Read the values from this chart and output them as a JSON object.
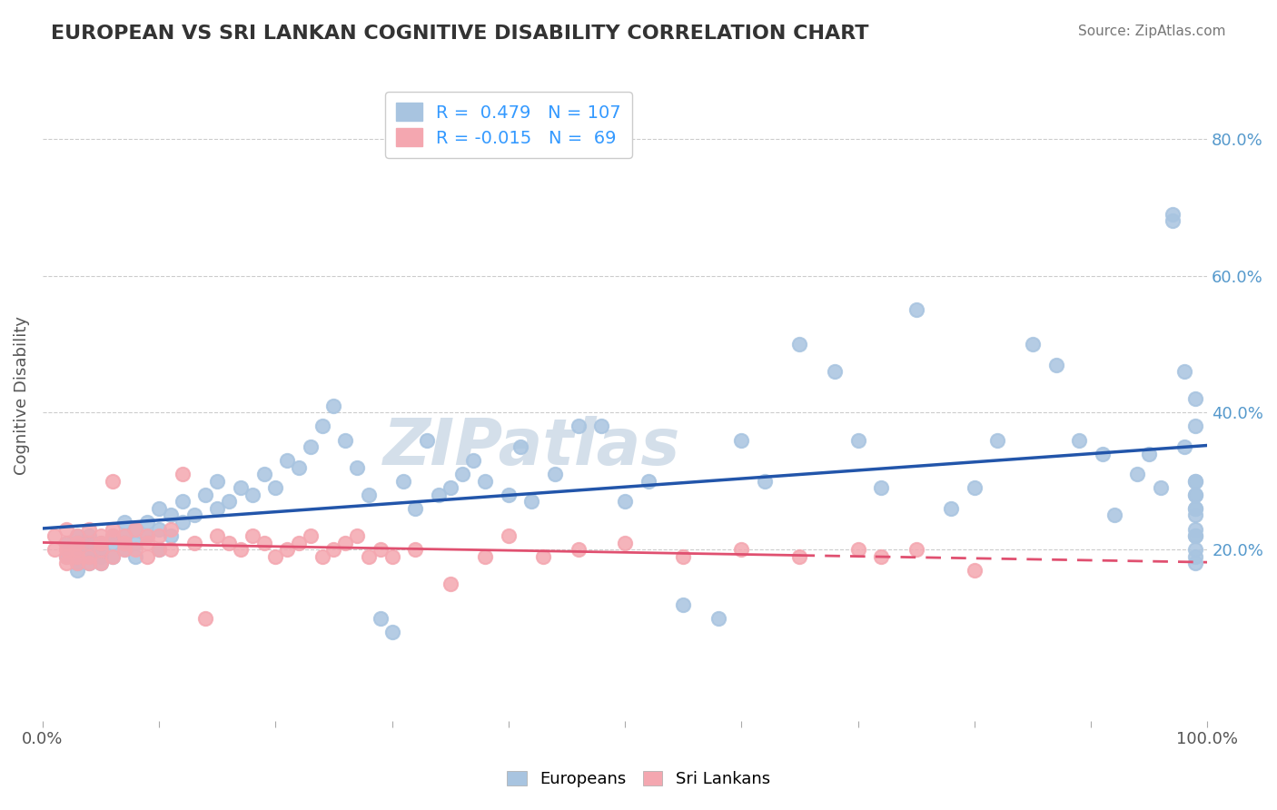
{
  "title": "EUROPEAN VS SRI LANKAN COGNITIVE DISABILITY CORRELATION CHART",
  "source_text": "Source: ZipAtlas.com",
  "xlabel": "",
  "ylabel": "Cognitive Disability",
  "xlim": [
    0.0,
    1.0
  ],
  "ylim": [
    -0.05,
    0.9
  ],
  "yticks": [
    0.2,
    0.4,
    0.6,
    0.8
  ],
  "ytick_labels": [
    "20.0%",
    "40.0%",
    "60.0%",
    "80.0%"
  ],
  "xticks": [
    0.0,
    1.0
  ],
  "xtick_labels": [
    "0.0%",
    "100.0%"
  ],
  "european_color": "#a8c4e0",
  "srilankan_color": "#f4a7b0",
  "european_line_color": "#2255aa",
  "srilankan_line_color": "#e05070",
  "srilankan_line_dashed_color": "#e05070",
  "R_european": 0.479,
  "N_european": 107,
  "R_srilankan": -0.015,
  "N_srilankan": 69,
  "background_color": "#ffffff",
  "grid_color": "#cccccc",
  "title_color": "#333333",
  "watermark_text": "ZIPatlas",
  "watermark_color": "#d0dce8",
  "legend_R_color": "#3399ff",
  "legend_N_color": "#3399ff",
  "european_scatter_x": [
    0.02,
    0.02,
    0.03,
    0.03,
    0.03,
    0.03,
    0.04,
    0.04,
    0.04,
    0.04,
    0.04,
    0.05,
    0.05,
    0.05,
    0.05,
    0.06,
    0.06,
    0.06,
    0.07,
    0.07,
    0.07,
    0.08,
    0.08,
    0.08,
    0.09,
    0.09,
    0.1,
    0.1,
    0.1,
    0.11,
    0.11,
    0.12,
    0.12,
    0.13,
    0.14,
    0.15,
    0.15,
    0.16,
    0.17,
    0.18,
    0.19,
    0.2,
    0.21,
    0.22,
    0.23,
    0.24,
    0.25,
    0.26,
    0.27,
    0.28,
    0.29,
    0.3,
    0.31,
    0.32,
    0.33,
    0.34,
    0.35,
    0.36,
    0.37,
    0.38,
    0.4,
    0.41,
    0.42,
    0.44,
    0.46,
    0.48,
    0.5,
    0.52,
    0.55,
    0.58,
    0.6,
    0.62,
    0.65,
    0.68,
    0.7,
    0.72,
    0.75,
    0.78,
    0.8,
    0.82,
    0.85,
    0.87,
    0.89,
    0.91,
    0.92,
    0.94,
    0.95,
    0.96,
    0.97,
    0.97,
    0.98,
    0.98,
    0.99,
    0.99,
    0.99,
    0.99,
    0.99,
    0.99,
    0.99,
    0.99,
    0.99,
    0.99,
    0.99,
    0.99,
    0.99,
    0.99,
    0.99
  ],
  "european_scatter_y": [
    0.19,
    0.21,
    0.18,
    0.2,
    0.22,
    0.17,
    0.19,
    0.21,
    0.18,
    0.2,
    0.22,
    0.19,
    0.21,
    0.18,
    0.2,
    0.19,
    0.21,
    0.22,
    0.2,
    0.22,
    0.24,
    0.21,
    0.23,
    0.19,
    0.22,
    0.24,
    0.2,
    0.23,
    0.26,
    0.22,
    0.25,
    0.24,
    0.27,
    0.25,
    0.28,
    0.26,
    0.3,
    0.27,
    0.29,
    0.28,
    0.31,
    0.29,
    0.33,
    0.32,
    0.35,
    0.38,
    0.41,
    0.36,
    0.32,
    0.28,
    0.1,
    0.08,
    0.3,
    0.26,
    0.36,
    0.28,
    0.29,
    0.31,
    0.33,
    0.3,
    0.28,
    0.35,
    0.27,
    0.31,
    0.38,
    0.38,
    0.27,
    0.3,
    0.12,
    0.1,
    0.36,
    0.3,
    0.5,
    0.46,
    0.36,
    0.29,
    0.55,
    0.26,
    0.29,
    0.36,
    0.5,
    0.47,
    0.36,
    0.34,
    0.25,
    0.31,
    0.34,
    0.29,
    0.68,
    0.69,
    0.35,
    0.46,
    0.26,
    0.3,
    0.42,
    0.38,
    0.28,
    0.22,
    0.18,
    0.25,
    0.26,
    0.3,
    0.28,
    0.22,
    0.19,
    0.2,
    0.23
  ],
  "srilankan_scatter_x": [
    0.01,
    0.01,
    0.02,
    0.02,
    0.02,
    0.02,
    0.02,
    0.03,
    0.03,
    0.03,
    0.03,
    0.03,
    0.04,
    0.04,
    0.04,
    0.04,
    0.05,
    0.05,
    0.05,
    0.05,
    0.06,
    0.06,
    0.06,
    0.06,
    0.07,
    0.07,
    0.07,
    0.08,
    0.08,
    0.09,
    0.09,
    0.09,
    0.1,
    0.1,
    0.11,
    0.11,
    0.12,
    0.13,
    0.14,
    0.15,
    0.16,
    0.17,
    0.18,
    0.19,
    0.2,
    0.21,
    0.22,
    0.23,
    0.24,
    0.25,
    0.26,
    0.27,
    0.28,
    0.29,
    0.3,
    0.32,
    0.35,
    0.38,
    0.4,
    0.43,
    0.46,
    0.5,
    0.55,
    0.6,
    0.65,
    0.7,
    0.72,
    0.75,
    0.8
  ],
  "srilankan_scatter_y": [
    0.22,
    0.2,
    0.21,
    0.19,
    0.23,
    0.18,
    0.2,
    0.22,
    0.19,
    0.21,
    0.18,
    0.2,
    0.21,
    0.23,
    0.19,
    0.18,
    0.22,
    0.2,
    0.18,
    0.21,
    0.23,
    0.19,
    0.22,
    0.3,
    0.2,
    0.22,
    0.21,
    0.23,
    0.2,
    0.22,
    0.21,
    0.19,
    0.2,
    0.22,
    0.23,
    0.2,
    0.31,
    0.21,
    0.1,
    0.22,
    0.21,
    0.2,
    0.22,
    0.21,
    0.19,
    0.2,
    0.21,
    0.22,
    0.19,
    0.2,
    0.21,
    0.22,
    0.19,
    0.2,
    0.19,
    0.2,
    0.15,
    0.19,
    0.22,
    0.19,
    0.2,
    0.21,
    0.19,
    0.2,
    0.19,
    0.2,
    0.19,
    0.2,
    0.17
  ]
}
